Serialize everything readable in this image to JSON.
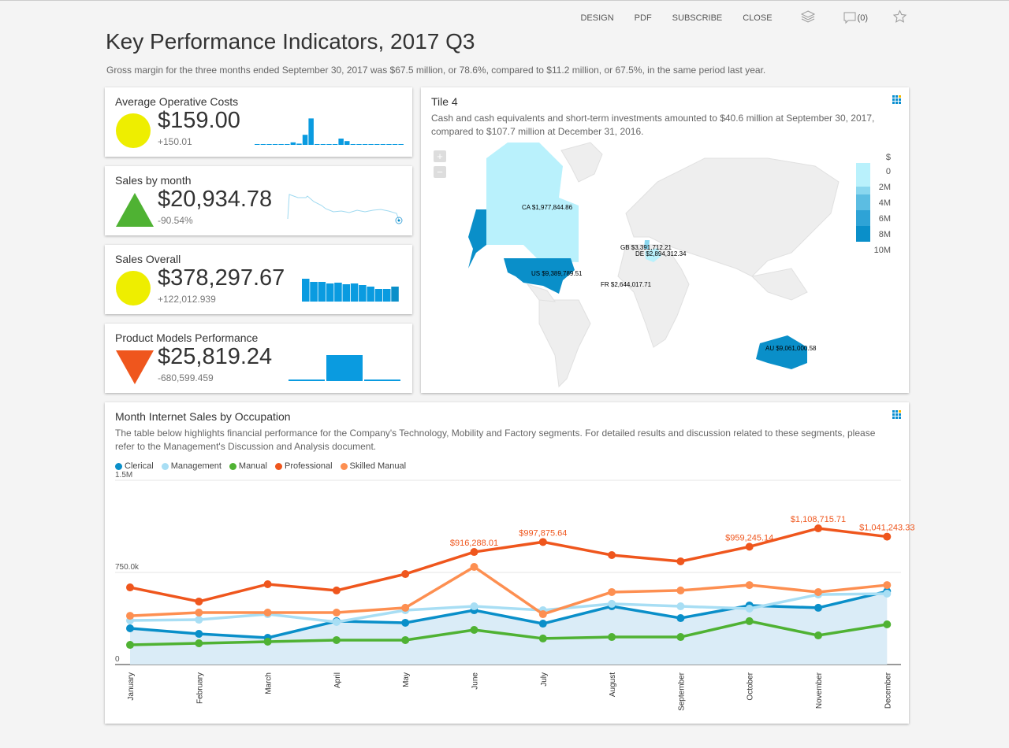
{
  "toolbar": {
    "design": "DESIGN",
    "pdf": "PDF",
    "subscribe": "SUBSCRIBE",
    "close": "CLOSE",
    "comments": "(0)"
  },
  "header": {
    "title": "Key Performance Indicators, 2017 Q3",
    "subtitle": "Gross margin for the three months ended September 30, 2017 was $67.5 million, or 78.6%, compared to $11.2 million, or 67.5%, in the same period last year."
  },
  "kpis": [
    {
      "title": "Average Operative Costs",
      "value": "$159.00",
      "delta": "+150.01",
      "indicator": "circle",
      "color": "#eeee00"
    },
    {
      "title": "Sales by month",
      "value": "$20,934.78",
      "delta": "-90.54%",
      "indicator": "triangle-up",
      "color": "#4fb233"
    },
    {
      "title": "Sales Overall",
      "value": "$378,297.67",
      "delta": "+122,012.939",
      "indicator": "circle",
      "color": "#eeee00"
    },
    {
      "title": "Product Models Performance",
      "value": "$25,819.24",
      "delta": "-680,599.459",
      "indicator": "triangle-down",
      "color": "#ef561d"
    }
  ],
  "map": {
    "title": "Tile 4",
    "description": "Cash and cash equivalents and short-term investments amounted to $40.6 million at September 30, 2017, compared to $107.7 million at December 31, 2016.",
    "zoom_in": "+",
    "zoom_out": "−",
    "legend_unit": "$",
    "legend_ticks": [
      "0",
      "2M",
      "4M",
      "6M",
      "8M",
      "10M"
    ],
    "legend_colors": [
      "#b9f1fc",
      "#8ad7ef",
      "#5cbde2",
      "#2ea3d6",
      "#0a8fc9"
    ],
    "labels": {
      "ca": "CA $1,977,844.86",
      "us": "US $9,389,789.51",
      "gb": "GB $3,391,712.21",
      "de": "DE $2,894,312.34",
      "fr": "FR $2,644,017.71",
      "au": "AU $9,061,000.58"
    }
  },
  "chart_data": {
    "type": "line",
    "title": "Month Internet Sales by Occupation",
    "description": "The table below highlights financial performance for the Company's Technology, Mobility and Factory segments. For detailed results and discussion related to these segments, please refer to the Management's Discussion and Analysis document.",
    "categories": [
      "January",
      "February",
      "March",
      "April",
      "May",
      "June",
      "July",
      "August",
      "September",
      "October",
      "November",
      "December"
    ],
    "yticks": [
      "0",
      "750.0k",
      "1.5M"
    ],
    "ylim": [
      0,
      1500000
    ],
    "legend": "top-left",
    "series": [
      {
        "name": "Clerical",
        "color": "#0a8fc9",
        "area": true,
        "values": [
          295000,
          250000,
          218000,
          353000,
          340000,
          442000,
          333000,
          474000,
          378000,
          481000,
          462000,
          596000
        ]
      },
      {
        "name": "Management",
        "color": "#a8def4",
        "values": [
          359000,
          365000,
          410000,
          346000,
          442000,
          474000,
          442000,
          494000,
          474000,
          455000,
          570000,
          577000
        ]
      },
      {
        "name": "Manual",
        "color": "#4fb233",
        "values": [
          160000,
          173000,
          186000,
          199000,
          199000,
          282000,
          212000,
          224000,
          224000,
          353000,
          237000,
          327000
        ]
      },
      {
        "name": "Professional",
        "color": "#ef561d",
        "values": [
          628000,
          513000,
          654000,
          603000,
          737000,
          916288.01,
          997875.64,
          891000,
          840000,
          959245.14,
          1108715.71,
          1041243.33
        ],
        "labels": [
          "",
          "",
          "",
          "",
          "",
          "$916,288.01",
          "$997,875.64",
          "",
          "",
          "$959,245.14",
          "$1,108,715.71",
          "$1,041,243.33"
        ]
      },
      {
        "name": "Skilled Manual",
        "color": "#fd8f51",
        "values": [
          397000,
          423000,
          423000,
          423000,
          462000,
          795000,
          410000,
          590000,
          603000,
          647000,
          590000,
          647000
        ]
      }
    ]
  }
}
